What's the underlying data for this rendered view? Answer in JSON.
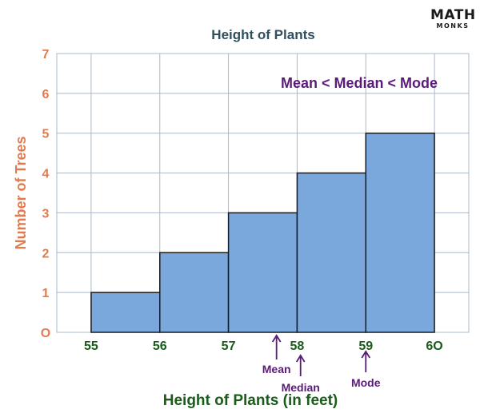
{
  "brand": {
    "logo_main": "MATH",
    "logo_sub": "MONKS"
  },
  "chart_data": {
    "type": "bar",
    "title": "Height of Plants",
    "xlabel": "Height of Plants (in feet)",
    "ylabel": "Number of Trees",
    "x_ticks": [
      "55",
      "56",
      "57",
      "58",
      "59",
      "6O"
    ],
    "x_range": [
      54.5,
      60.5
    ],
    "ylim": [
      0,
      7
    ],
    "y_ticks": [
      "O",
      "1",
      "2",
      "3",
      "4",
      "5",
      "6",
      "7"
    ],
    "grid": true,
    "bins": [
      {
        "from": 55,
        "to": 56,
        "value": 1
      },
      {
        "from": 56,
        "to": 57,
        "value": 2
      },
      {
        "from": 57,
        "to": 58,
        "value": 3
      },
      {
        "from": 58,
        "to": 59,
        "value": 4
      },
      {
        "from": 59,
        "to": 60,
        "value": 5
      }
    ],
    "annotation": "Mean < Median < Mode",
    "markers": [
      {
        "label": "Mean",
        "x": 57.7,
        "level": 1
      },
      {
        "label": "Median",
        "x": 58.05,
        "level": 2
      },
      {
        "label": "Mode",
        "x": 59.0,
        "level": 3
      }
    ]
  },
  "colors": {
    "bar_fill": "#7aa7dc",
    "bar_stroke": "#1a1a1a",
    "grid": "#a8b8c8",
    "title": "#2f4f5f",
    "ylabel": "#e07b4f",
    "y_ticks": "#e07b4f",
    "x_ticks": "#1a5c1a",
    "xlabel": "#1a5c1a",
    "annotation": "#5b1a7a"
  }
}
